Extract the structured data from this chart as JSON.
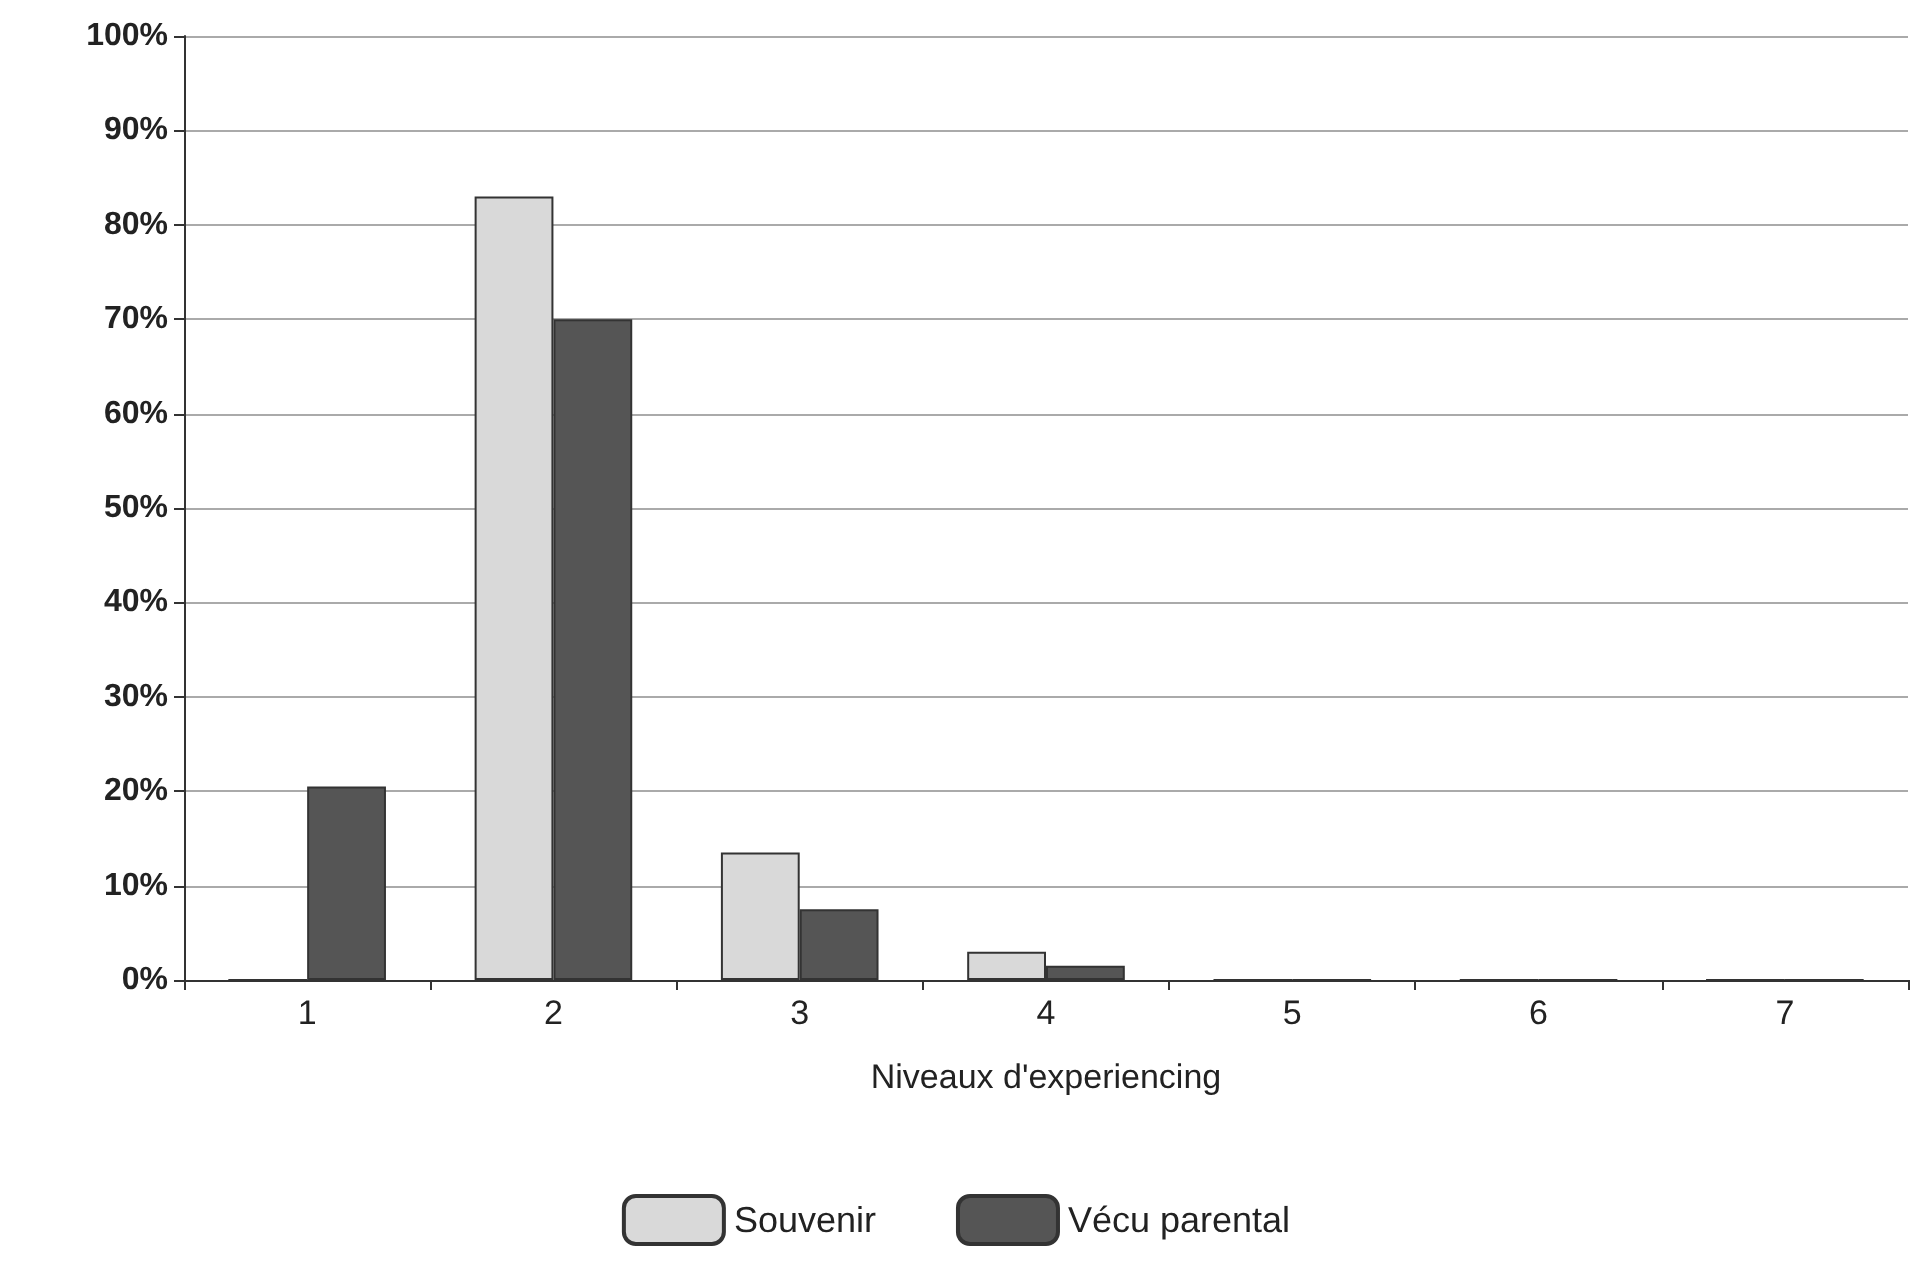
{
  "chart_data": {
    "type": "bar",
    "xlabel": "Niveaux d'experiencing",
    "categories": [
      "1",
      "2",
      "3",
      "4",
      "5",
      "6",
      "7"
    ],
    "series": [
      {
        "name": "Souvenir",
        "color": "#d9d9d9",
        "values": [
          0,
          83,
          13.5,
          3,
          0,
          0,
          0
        ]
      },
      {
        "name": "Vécu parental",
        "color": "#555555",
        "values": [
          20.5,
          70,
          7.5,
          1.5,
          0,
          0,
          0
        ]
      }
    ],
    "ylim": [
      0,
      100
    ],
    "yticks": [
      {
        "value": 0,
        "label": "0%"
      },
      {
        "value": 10,
        "label": "10%"
      },
      {
        "value": 20,
        "label": "20%"
      },
      {
        "value": 30,
        "label": "30%"
      },
      {
        "value": 40,
        "label": "40%"
      },
      {
        "value": 50,
        "label": "50%"
      },
      {
        "value": 60,
        "label": "60%"
      },
      {
        "value": 70,
        "label": "70%"
      },
      {
        "value": 80,
        "label": "80%"
      },
      {
        "value": 90,
        "label": "90%"
      },
      {
        "value": 100,
        "label": "100%"
      }
    ],
    "grid": "y",
    "legend": "bottom"
  }
}
